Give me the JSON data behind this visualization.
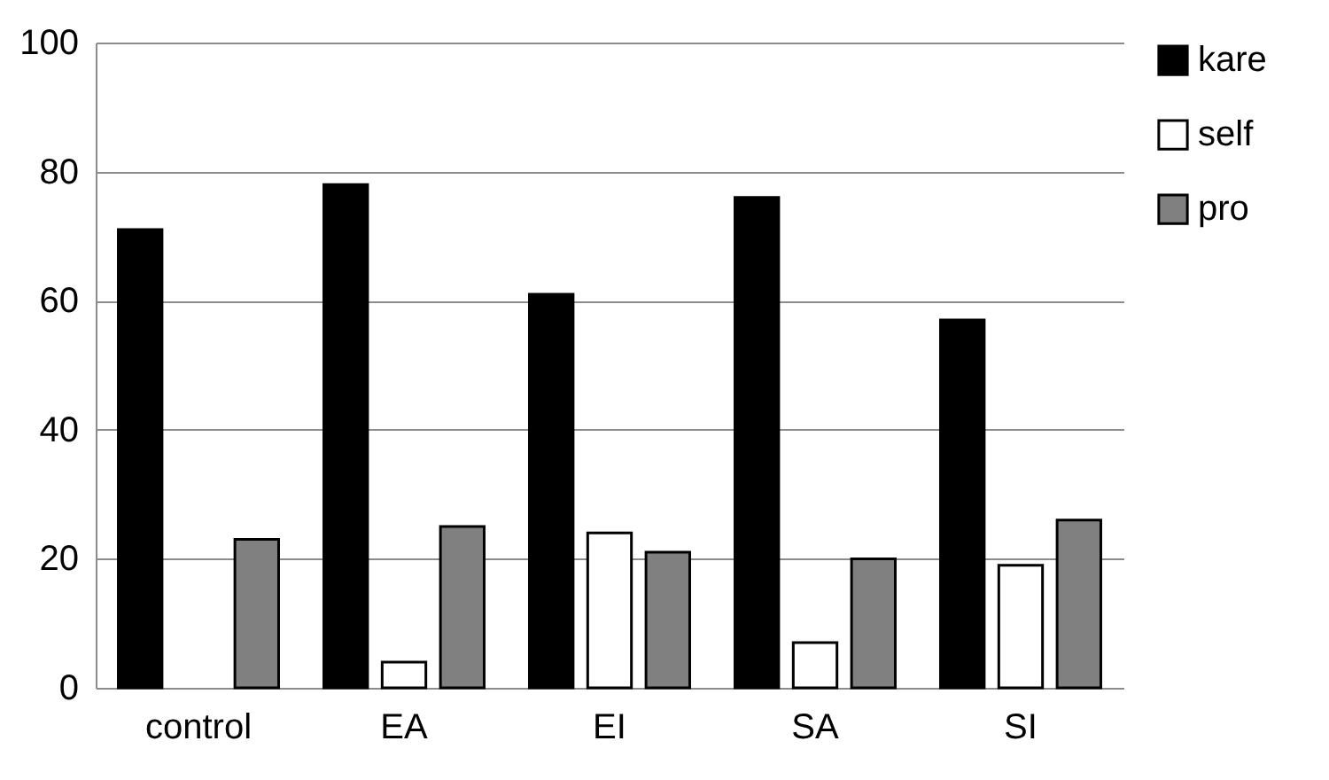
{
  "chart_data": {
    "type": "bar",
    "categories": [
      "control",
      "EA",
      "EI",
      "SA",
      "SI"
    ],
    "series": [
      {
        "name": "kare",
        "color": "#000000",
        "values": [
          71,
          78,
          61,
          76,
          57
        ]
      },
      {
        "name": "self",
        "color": "#ffffff",
        "values": [
          null,
          4,
          24,
          7,
          19
        ]
      },
      {
        "name": "pro",
        "color": "#808080",
        "values": [
          23,
          25,
          21,
          20,
          26
        ]
      }
    ],
    "ylim": [
      0,
      100
    ],
    "yticks": [
      0,
      20,
      40,
      60,
      80,
      100
    ],
    "grid": "y",
    "legend": "right"
  }
}
